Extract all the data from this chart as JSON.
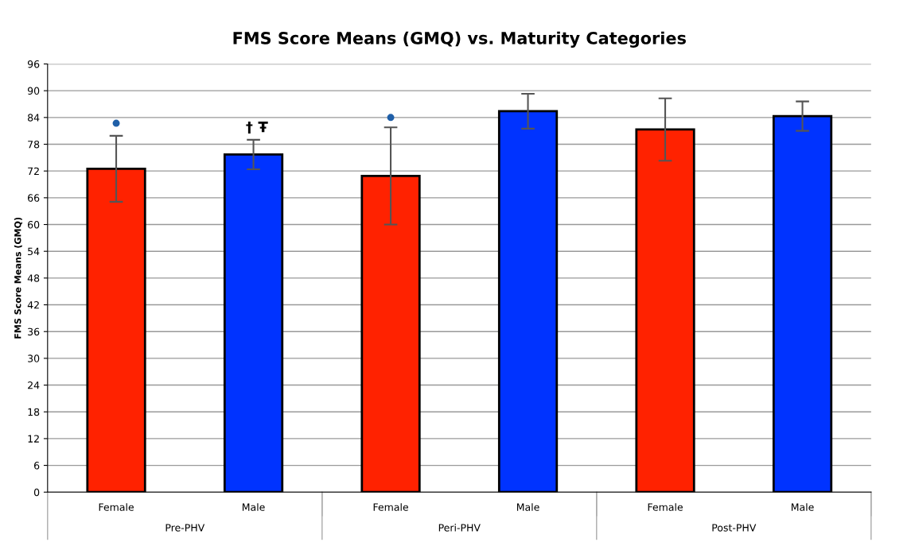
{
  "chart_data": {
    "type": "bar",
    "title": "FMS Score Means (GMQ) vs. Maturity Categories",
    "ylabel": "FMS Score Means (GMQ)",
    "categories": [
      "Female",
      "Male",
      "Female",
      "Male",
      "Female",
      "Male"
    ],
    "series": [
      {
        "colors": [
          "#ff2200",
          "#0033ff",
          "#ff2200",
          "#0033ff",
          "#ff2200",
          "#0033ff"
        ],
        "values": [
          72.5,
          75.7,
          70.9,
          85.4,
          81.3,
          84.3
        ],
        "errors": [
          7.4,
          3.3,
          10.9,
          3.9,
          7,
          3.3
        ]
      },
      {
        "type": "scatter",
        "color": "#1f5fa8",
        "values": [
          82.7,
          null,
          84,
          null,
          null,
          null
        ]
      }
    ],
    "annotations": [
      "Pre-PHV",
      "Peri-PHV",
      "Post-PHV",
      "†",
      "Ŧ"
    ],
    "ylim": [
      0,
      96
    ],
    "yticks": [
      0,
      6,
      12,
      18,
      24,
      30,
      36,
      42,
      48,
      54,
      60,
      66,
      72,
      78,
      84,
      90,
      96
    ],
    "grid": "y",
    "marker": "circle"
  }
}
